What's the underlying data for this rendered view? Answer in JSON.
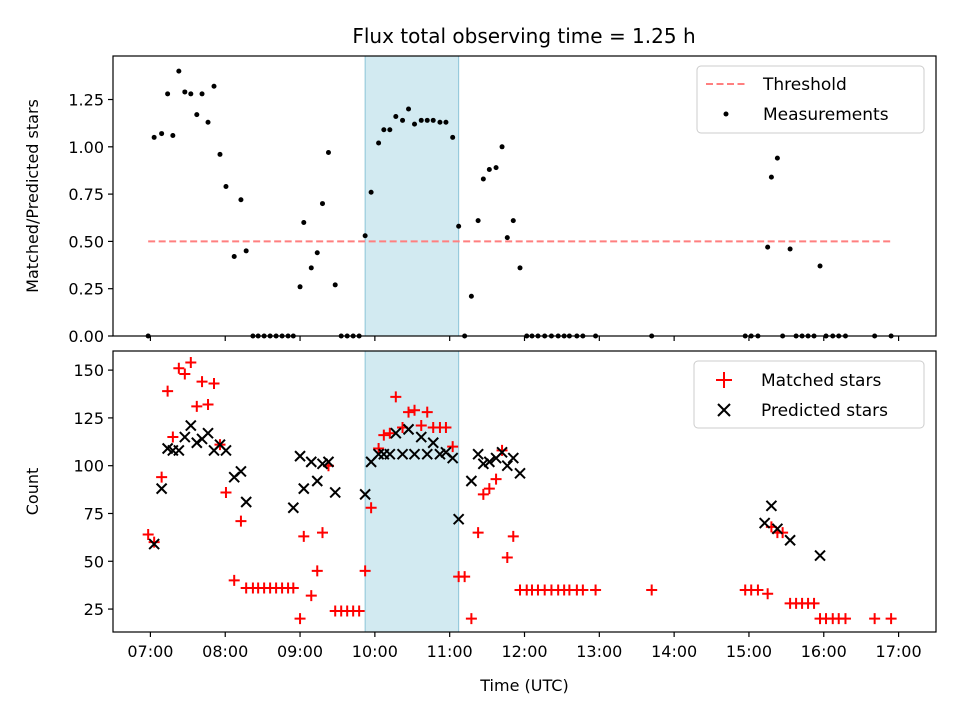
{
  "figure": {
    "title": "Flux total observing time = 1.25 h"
  },
  "chart_data": [
    {
      "type": "scatter",
      "ylabel": "Matched/Predicted stars",
      "xlabel": "",
      "xlim_hours": [
        6.5,
        17.5
      ],
      "ylim": [
        0,
        1.48
      ],
      "yticks": [
        0.0,
        0.25,
        0.5,
        0.75,
        1.0,
        1.25
      ],
      "ytick_labels": [
        "0.00",
        "0.25",
        "0.50",
        "0.75",
        "1.00",
        "1.25"
      ],
      "grid": false,
      "legend_position": "top-right",
      "shaded_span": {
        "x_start": 9.87,
        "x_end": 11.12,
        "color": "#add8e6"
      },
      "threshold": {
        "name": "Threshold",
        "y": 0.5,
        "x_start": 6.97,
        "x_end": 16.93,
        "color": "#ff7f7f",
        "style": "dashed"
      },
      "series": [
        {
          "name": "Measurements",
          "color": "#000000",
          "marker": "dot",
          "x": [
            6.97,
            7.05,
            7.15,
            7.23,
            7.3,
            7.38,
            7.46,
            7.54,
            7.62,
            7.69,
            7.77,
            7.85,
            7.93,
            8.01,
            8.12,
            8.21,
            8.28,
            8.37,
            8.44,
            8.52,
            8.6,
            8.68,
            8.76,
            8.84,
            8.91,
            9.0,
            9.05,
            9.15,
            9.23,
            9.3,
            9.38,
            9.47,
            9.55,
            9.63,
            9.71,
            9.79,
            9.87,
            9.95,
            10.05,
            10.12,
            10.2,
            10.28,
            10.37,
            10.45,
            10.53,
            10.62,
            10.7,
            10.78,
            10.87,
            10.95,
            11.04,
            11.12,
            11.2,
            11.29,
            11.38,
            11.45,
            11.53,
            11.62,
            11.7,
            11.77,
            11.85,
            11.94,
            12.03,
            12.1,
            12.18,
            12.27,
            12.36,
            12.45,
            12.53,
            12.6,
            12.7,
            12.78,
            12.95,
            13.7,
            14.95,
            15.03,
            15.12,
            15.25,
            15.3,
            15.38,
            15.45,
            15.55,
            15.63,
            15.71,
            15.79,
            15.87,
            15.95,
            16.03,
            16.12,
            16.2,
            16.29,
            16.68,
            16.9
          ],
          "y": [
            0.0,
            1.05,
            1.07,
            1.28,
            1.06,
            1.4,
            1.29,
            1.28,
            1.17,
            1.28,
            1.13,
            1.32,
            0.96,
            0.79,
            0.42,
            0.72,
            0.45,
            0.0,
            0.0,
            0.0,
            0.0,
            0.0,
            0.0,
            0.0,
            0.0,
            0.26,
            0.6,
            0.36,
            0.44,
            0.7,
            0.97,
            0.27,
            0.0,
            0.0,
            0.0,
            0.0,
            0.53,
            0.76,
            1.02,
            1.09,
            1.09,
            1.16,
            1.14,
            1.2,
            1.12,
            1.14,
            1.14,
            1.14,
            1.13,
            1.13,
            1.05,
            0.58,
            0.0,
            0.21,
            0.61,
            0.83,
            0.88,
            0.89,
            1.0,
            0.52,
            0.61,
            0.36,
            0.0,
            0.0,
            0.0,
            0.0,
            0.0,
            0.0,
            0.0,
            0.0,
            0.0,
            0.0,
            0.0,
            0.0,
            0.0,
            0.0,
            0.0,
            0.47,
            0.84,
            0.94,
            0.0,
            0.46,
            0.0,
            0.0,
            0.0,
            0.0,
            0.37,
            0.0,
            0.0,
            0.0,
            0.0,
            0.0,
            0.0
          ]
        }
      ]
    },
    {
      "type": "scatter",
      "ylabel": "Count",
      "xlabel": "Time (UTC)",
      "xlim_hours": [
        6.5,
        17.5
      ],
      "ylim": [
        13,
        160
      ],
      "yticks": [
        25,
        50,
        75,
        100,
        125,
        150
      ],
      "ytick_labels": [
        "25",
        "50",
        "75",
        "100",
        "125",
        "150"
      ],
      "xticks_hours": [
        7,
        8,
        9,
        10,
        11,
        12,
        13,
        14,
        15,
        16,
        17
      ],
      "xtick_labels": [
        "07:00",
        "08:00",
        "09:00",
        "10:00",
        "11:00",
        "12:00",
        "13:00",
        "14:00",
        "15:00",
        "16:00",
        "17:00"
      ],
      "grid": false,
      "legend_position": "top-right",
      "shaded_span": {
        "x_start": 9.87,
        "x_end": 11.12,
        "color": "#add8e6"
      },
      "series": [
        {
          "name": "Matched stars",
          "color": "#ff0000",
          "marker": "plus",
          "x": [
            6.97,
            7.05,
            7.15,
            7.23,
            7.3,
            7.38,
            7.46,
            7.54,
            7.62,
            7.69,
            7.77,
            7.85,
            7.93,
            8.01,
            8.12,
            8.21,
            8.28,
            8.37,
            8.44,
            8.52,
            8.6,
            8.68,
            8.76,
            8.84,
            8.91,
            9.0,
            9.05,
            9.15,
            9.23,
            9.3,
            9.38,
            9.47,
            9.55,
            9.63,
            9.71,
            9.79,
            9.87,
            9.95,
            10.05,
            10.12,
            10.2,
            10.28,
            10.37,
            10.45,
            10.53,
            10.62,
            10.7,
            10.78,
            10.87,
            10.95,
            11.04,
            11.12,
            11.2,
            11.29,
            11.38,
            11.45,
            11.53,
            11.62,
            11.7,
            11.77,
            11.85,
            11.94,
            12.03,
            12.1,
            12.18,
            12.27,
            12.36,
            12.45,
            12.53,
            12.6,
            12.7,
            12.78,
            12.95,
            13.7,
            14.95,
            15.03,
            15.12,
            15.25,
            15.3,
            15.38,
            15.45,
            15.55,
            15.63,
            15.71,
            15.79,
            15.87,
            15.95,
            16.03,
            16.12,
            16.2,
            16.29,
            16.68,
            16.9
          ],
          "y": [
            64,
            60,
            94,
            139,
            115,
            151,
            148,
            154,
            131,
            144,
            132,
            143,
            111,
            86,
            40,
            71,
            36,
            36,
            36,
            36,
            36,
            36,
            36,
            36,
            36,
            20,
            63,
            32,
            45,
            65,
            100,
            24,
            24,
            24,
            24,
            24,
            45,
            78,
            109,
            116,
            117,
            136,
            120,
            128,
            129,
            121,
            128,
            120,
            120,
            120,
            110,
            42,
            42,
            20,
            65,
            85,
            88,
            93,
            108,
            52,
            63,
            35,
            35,
            35,
            35,
            35,
            35,
            35,
            35,
            35,
            35,
            35,
            35,
            35,
            35,
            35,
            35,
            33,
            68,
            65,
            65,
            28,
            28,
            28,
            28,
            28,
            20,
            20,
            20,
            20,
            20,
            20,
            20
          ]
        },
        {
          "name": "Predicted stars",
          "color": "#000000",
          "marker": "x",
          "x": [
            7.05,
            7.15,
            7.23,
            7.3,
            7.38,
            7.46,
            7.54,
            7.62,
            7.69,
            7.77,
            7.85,
            7.93,
            8.01,
            8.12,
            8.21,
            8.28,
            8.91,
            9.0,
            9.05,
            9.15,
            9.23,
            9.3,
            9.38,
            9.47,
            9.87,
            9.95,
            10.05,
            10.12,
            10.2,
            10.28,
            10.37,
            10.45,
            10.53,
            10.62,
            10.7,
            10.78,
            10.87,
            10.95,
            11.04,
            11.12,
            11.29,
            11.38,
            11.45,
            11.53,
            11.62,
            11.7,
            11.77,
            11.85,
            11.94,
            15.21,
            15.3,
            15.38,
            15.55,
            15.95
          ],
          "y": [
            59,
            88,
            109,
            108,
            108,
            115,
            121,
            112,
            114,
            117,
            108,
            111,
            108,
            94,
            97,
            81,
            78,
            105,
            88,
            102,
            92,
            101,
            102,
            86,
            85,
            102,
            106,
            106,
            106,
            117,
            106,
            119,
            106,
            115,
            106,
            112,
            106,
            107,
            104,
            72,
            92,
            106,
            101,
            102,
            104,
            107,
            100,
            104,
            96,
            70,
            79,
            67,
            61,
            53
          ]
        }
      ]
    }
  ]
}
